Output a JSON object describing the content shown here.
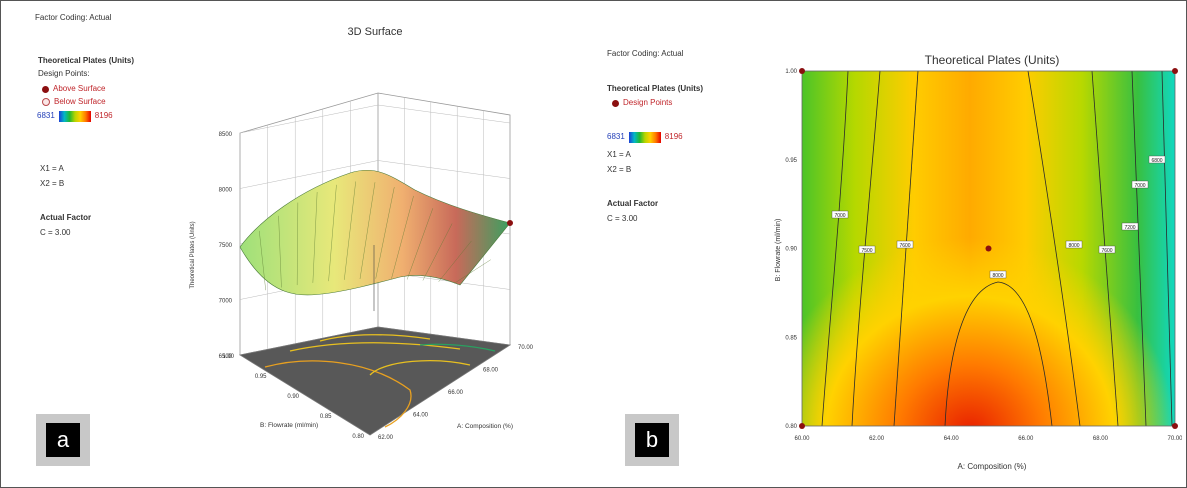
{
  "panel_a": {
    "factor_coding": "Factor Coding: Actual",
    "title": "3D Surface",
    "response_title": "Theoretical Plates (Units)",
    "design_points_label": "Design Points:",
    "above_label": "Above Surface",
    "below_label": "Below Surface",
    "scale_min": "6831",
    "scale_max": "8196",
    "x1": "X1 = A",
    "x2": "X2 = B",
    "actual_factor": "Actual Factor",
    "c_value": "C = 3.00",
    "tag": "a"
  },
  "panel_b": {
    "factor_coding": "Factor Coding: Actual",
    "response_title": "Theoretical Plates (Units)",
    "design_points_label": "Design Points",
    "scale_min": "6831",
    "scale_max": "8196",
    "x1": "X1 = A",
    "x2": "X2 = B",
    "actual_factor": "Actual Factor",
    "c_value": "C = 3.00",
    "tag": "b"
  },
  "chart_data": [
    {
      "type": "surface",
      "title": "3D Surface",
      "xlabel": "A: Composition (%)",
      "ylabel": "B: Flowrate (ml/min)",
      "zlabel": "Theoretical Plates (Units)",
      "x_ticks": [
        "62.00",
        "64.00",
        "66.00",
        "68.00",
        "70.00"
      ],
      "y_ticks": [
        "0.80",
        "0.85",
        "0.90",
        "0.95",
        "1.00"
      ],
      "z_ticks": [
        "6500",
        "7000",
        "7500",
        "8000",
        "8500"
      ],
      "x_range": [
        60,
        70
      ],
      "y_range": [
        0.8,
        1.0
      ],
      "z_range": [
        6500,
        8500
      ],
      "design_point": {
        "x": 65,
        "y": 0.9,
        "z": 8196
      }
    },
    {
      "type": "contour",
      "title": "Theoretical Plates (Units)",
      "xlabel": "A: Composition (%)",
      "ylabel": "B: Flowrate (ml/min)",
      "x_ticks": [
        "60.00",
        "62.00",
        "64.00",
        "66.00",
        "68.00",
        "70.00"
      ],
      "y_ticks": [
        "0.80",
        "0.85",
        "0.90",
        "0.95",
        "1.00"
      ],
      "x_range": [
        60,
        70
      ],
      "y_range": [
        0.8,
        1.0
      ],
      "contour_labels": [
        "7000",
        "7500",
        "7600",
        "8000",
        "8000",
        "7600",
        "7200",
        "7000",
        "6800"
      ],
      "design_points": [
        {
          "x": 60,
          "y": 1.0
        },
        {
          "x": 70,
          "y": 1.0
        },
        {
          "x": 60,
          "y": 0.8
        },
        {
          "x": 70,
          "y": 0.8
        },
        {
          "x": 65,
          "y": 0.9
        }
      ]
    }
  ]
}
